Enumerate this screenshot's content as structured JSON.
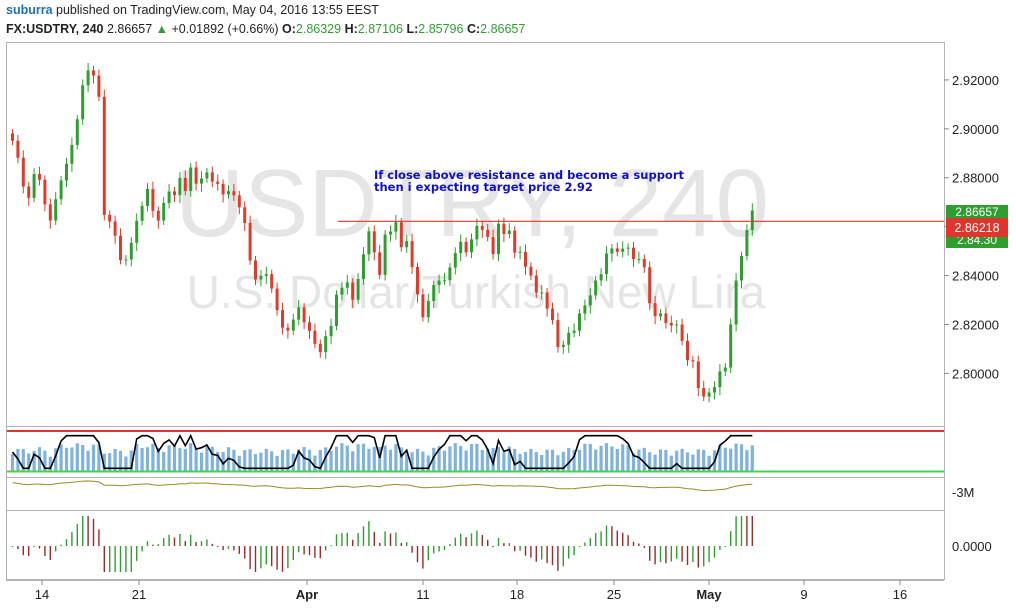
{
  "header": {
    "author": "suburra",
    "published_text": "published on TradingView.com, May 04, 2016 13:55 EEST",
    "symbol": "FX:USDTRY, 240",
    "last": "2.86657",
    "change_arrow": "▲",
    "change": "+0.01892 (+0.66%)",
    "o_label": "O:",
    "o_value": "2.86329",
    "h_label": "H:",
    "h_value": "2.87106",
    "l_label": "L:",
    "l_value": "2.85796",
    "c_label": "C:",
    "c_value": "2.86657"
  },
  "watermark": {
    "symbol": "USDTRY, 240",
    "description": "U.S. Dollar/Turkish New Lira"
  },
  "annotation": {
    "line1": "If close above resistance and become a support",
    "line2": "then i expecting target price 2.92"
  },
  "price_labels": {
    "last": "2.86657",
    "resistance": "2.86218",
    "below": "2.84.30"
  },
  "colors": {
    "up": "#2e9e2e",
    "down": "#e03a2a",
    "resistance": "#e0352b",
    "annotation": "#1010c8",
    "volume": "#7fb2df",
    "oscillator": "#000000",
    "upper_band": "#e0352b",
    "lower_band": "#3fd83f",
    "money_flow": "#9a8a24"
  },
  "indicators": {
    "obv_label": "-3M",
    "histogram_label": "0.0000"
  },
  "chart_data": {
    "type": "candlestick",
    "x_ticks": [
      "14",
      "21",
      "Apr",
      "11",
      "18",
      "25",
      "May",
      "9",
      "16"
    ],
    "y_ticks": [
      "2.92000",
      "2.90000",
      "2.88000",
      "2.86000",
      "2.84000",
      "2.82000",
      "2.80000"
    ],
    "ylim": [
      2.7785,
      2.9355
    ],
    "resistance_level": 2.86218,
    "closes": [
      2.8951,
      2.8882,
      2.8764,
      2.8718,
      2.8815,
      2.8792,
      2.8691,
      2.8625,
      2.8712,
      2.8789,
      2.8857,
      2.8934,
      2.9039,
      2.9178,
      2.9239,
      2.9218,
      2.9131,
      2.8648,
      2.8621,
      2.8563,
      2.8464,
      2.8466,
      2.8534,
      2.8624,
      2.8685,
      2.8754,
      2.8665,
      2.8625,
      2.8697,
      2.8744,
      2.8729,
      2.8799,
      2.8746,
      2.8842,
      2.8776,
      2.8797,
      2.8822,
      2.8784,
      2.8775,
      2.8732,
      2.8745,
      2.8728,
      2.8679,
      2.8615,
      2.8462,
      2.8384,
      2.8399,
      2.8406,
      2.8347,
      2.8259,
      2.8187,
      2.8175,
      2.822,
      2.827,
      2.8209,
      2.8174,
      2.8121,
      2.8087,
      2.8152,
      2.8194,
      2.8322,
      2.835,
      2.8372,
      2.8301,
      2.8386,
      2.8487,
      2.8581,
      2.8495,
      2.8403,
      2.8568,
      2.858,
      2.8618,
      2.8516,
      2.8541,
      2.8435,
      2.8323,
      2.823,
      2.8296,
      2.8361,
      2.838,
      2.8381,
      2.8433,
      2.8492,
      2.8538,
      2.8495,
      2.8548,
      2.8603,
      2.8587,
      2.8558,
      2.8488,
      2.8612,
      2.857,
      2.8584,
      2.8494,
      2.8497,
      2.8436,
      2.84,
      2.833,
      2.8331,
      2.8265,
      2.8218,
      2.8108,
      2.8117,
      2.8166,
      2.8175,
      2.8245,
      2.8278,
      2.8319,
      2.838,
      2.8406,
      2.849,
      2.8511,
      2.8497,
      2.851,
      2.8514,
      2.8467,
      2.8468,
      2.8434,
      2.8287,
      2.8234,
      2.8245,
      2.8206,
      2.8196,
      2.82,
      2.8133,
      2.8054,
      2.8049,
      2.794,
      2.7905,
      2.7922,
      2.7944,
      2.8008,
      2.8024,
      2.82,
      2.838,
      2.848,
      2.8586,
      2.8666
    ]
  }
}
